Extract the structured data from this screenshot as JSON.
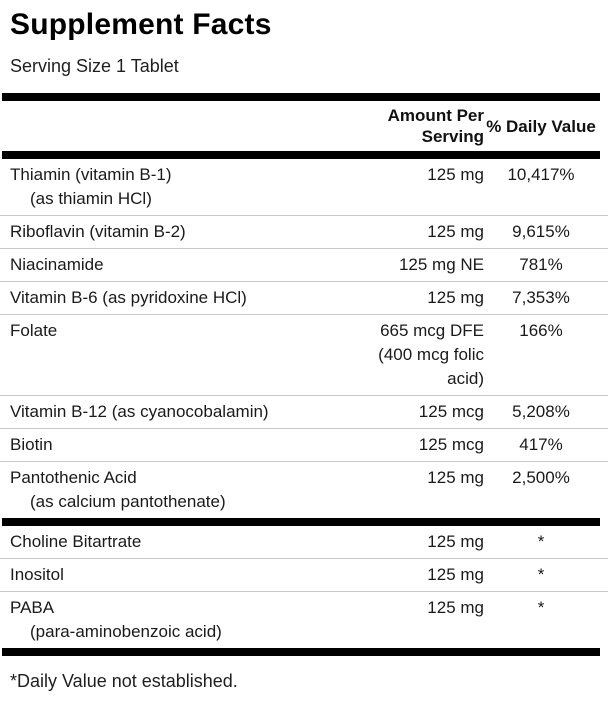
{
  "label": {
    "title": "Supplement Facts",
    "serving_size": "Serving Size 1 Tablet",
    "columns": {
      "amount": "Amount Per\nServing",
      "daily_value": "% Daily Value"
    },
    "rows_with_dv": [
      {
        "name": "Thiamin (vitamin B-1)",
        "sub": "(as thiamin HCl)",
        "amount": "125 mg",
        "daily_value": "10,417%"
      },
      {
        "name": "Riboflavin (vitamin B-2)",
        "sub": "",
        "amount": "125 mg",
        "daily_value": "9,615%"
      },
      {
        "name": "Niacinamide",
        "sub": "",
        "amount": "125 mg NE",
        "daily_value": "781%"
      },
      {
        "name": "Vitamin B-6 (as pyridoxine HCl)",
        "sub": "",
        "amount": "125 mg",
        "daily_value": "7,353%"
      },
      {
        "name": "Folate",
        "sub": "",
        "amount": "665 mcg DFE\n(400 mcg folic\nacid)",
        "daily_value": "166%"
      },
      {
        "name": "Vitamin B-12 (as cyanocobalamin)",
        "sub": "",
        "amount": "125 mcg",
        "daily_value": "5,208%"
      },
      {
        "name": "Biotin",
        "sub": "",
        "amount": "125 mcg",
        "daily_value": "417%"
      },
      {
        "name": "Pantothenic Acid",
        "sub": "(as calcium pantothenate)",
        "amount": "125 mg",
        "daily_value": "2,500%"
      }
    ],
    "rows_no_dv": [
      {
        "name": "Choline Bitartrate",
        "sub": "",
        "amount": "125 mg",
        "daily_value": "*"
      },
      {
        "name": "Inositol",
        "sub": "",
        "amount": "125 mg",
        "daily_value": "*"
      },
      {
        "name": "PABA",
        "sub": "(para-aminobenzoic acid)",
        "amount": "125 mg",
        "daily_value": "*"
      }
    ],
    "footnote": "*Daily Value not established.",
    "colors": {
      "text": "#1a1a1a",
      "divider_thick": "#000000",
      "divider_thin": "#c9c9c9"
    }
  }
}
